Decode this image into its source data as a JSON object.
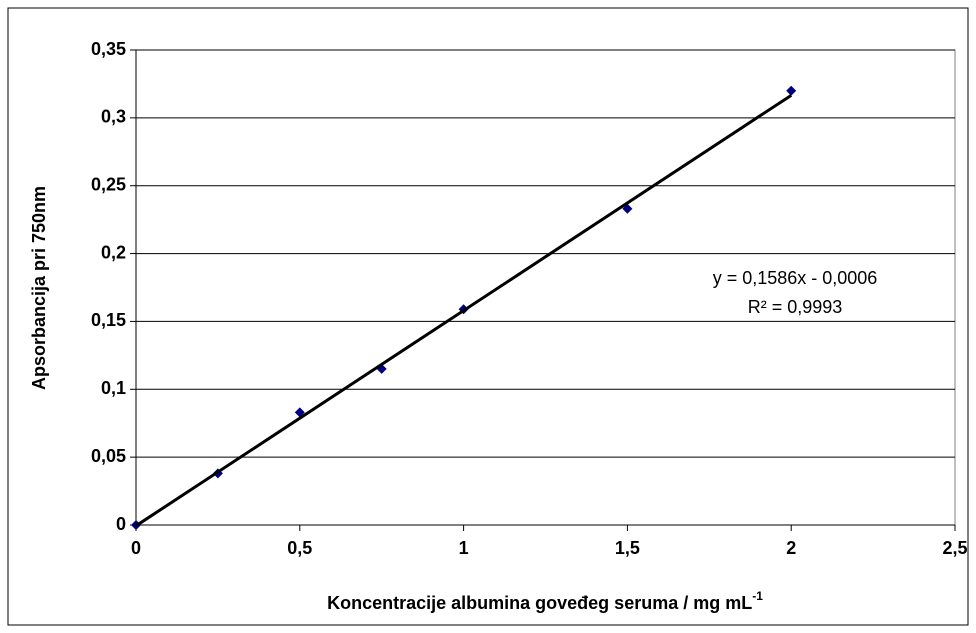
{
  "chart_data": {
    "type": "scatter",
    "xlabel": "Koncentracije albumina goveđeg seruma / mg mL",
    "xlabel_sup": "-1",
    "ylabel": "Apsorbancija pri 750nm",
    "series": [
      {
        "color": "#000080",
        "x": [
          0,
          0.25,
          0.5,
          0.75,
          1,
          1.5,
          2
        ],
        "values": [
          0,
          0.038,
          0.083,
          0.115,
          0.159,
          0.233,
          0.32
        ]
      }
    ],
    "trendline": {
      "slope": 0.1586,
      "intercept": -0.0006,
      "color": "#000000",
      "label": "y = 0,1586x - 0,0006",
      "r2_label": "R² = 0,9993"
    },
    "xlim": [
      0,
      2.5
    ],
    "xticks": [
      0,
      {
        "value": 0.5,
        "label": "0,5"
      },
      1,
      {
        "value": 1.5,
        "label": "1,5"
      },
      2,
      {
        "value": 2.5,
        "label": "2,5"
      }
    ],
    "ylim": [
      0,
      0.35
    ],
    "yticks": [
      0,
      {
        "value": 0.05,
        "label": "0,05"
      },
      {
        "value": 0.1,
        "label": "0,1"
      },
      {
        "value": 0.15,
        "label": "0,15"
      },
      {
        "value": 0.2,
        "label": "0,2"
      },
      {
        "value": 0.25,
        "label": "0,25"
      },
      {
        "value": 0.3,
        "label": "0,3"
      },
      {
        "value": 0.35,
        "label": "0,35"
      }
    ],
    "grid": true
  }
}
